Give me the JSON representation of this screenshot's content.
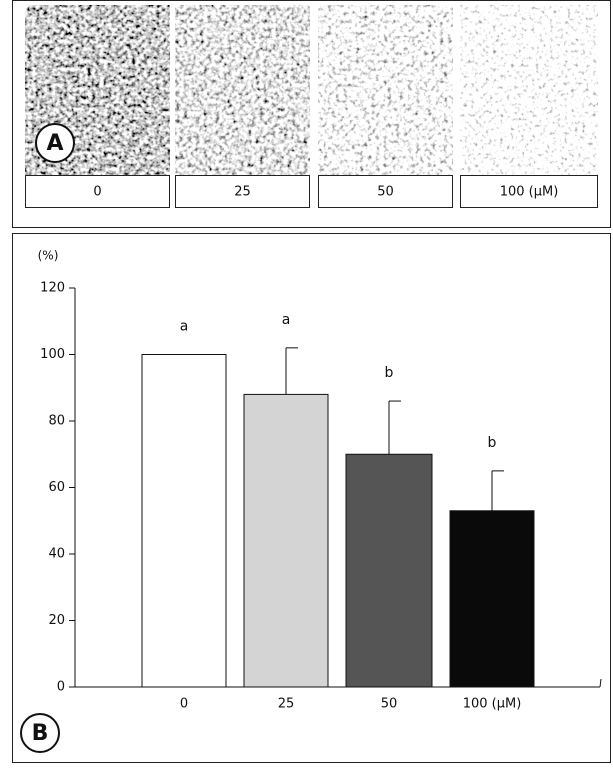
{
  "panel_a": {
    "label": "A",
    "images": [
      "0",
      "25",
      "50",
      "100 (μM)"
    ]
  },
  "chart_data": {
    "type": "bar",
    "panel_label": "B",
    "y_unit": "(%)",
    "categories": [
      "0",
      "25",
      "50",
      "100 (μM)"
    ],
    "values": [
      100,
      88,
      70,
      53
    ],
    "errors": [
      0,
      14,
      16,
      12
    ],
    "annotations": [
      "a",
      "a",
      "b",
      "b"
    ],
    "colors": [
      "#ffffff",
      "#d4d4d4",
      "#555555",
      "#0a0a0a"
    ],
    "ylim": [
      0,
      120
    ],
    "yticks": [
      0,
      20,
      40,
      60,
      80,
      100,
      120
    ]
  }
}
